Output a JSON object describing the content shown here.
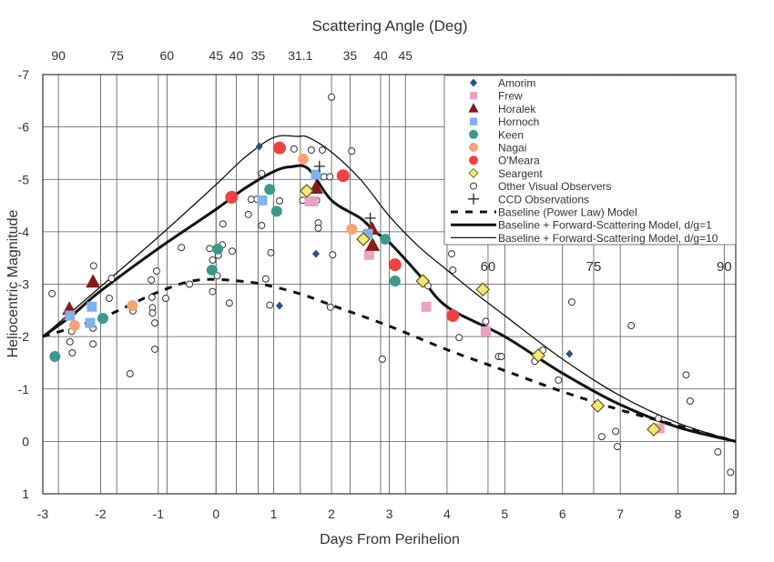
{
  "chart_data": {
    "type": "scatter",
    "title": "Scattering Angle (Deg)",
    "xlabel": "Days From Perihelion",
    "ylabel": "Heliocentric Magnitude",
    "xlim": [
      -3,
      9
    ],
    "ylim": [
      1,
      -7
    ],
    "y_inverted": true,
    "grid": true,
    "legend_placement": "top-right",
    "x_ticks": [
      "-3",
      "-2",
      "-1",
      "0",
      "1",
      "2",
      "3",
      "4",
      "5",
      "6",
      "7",
      "8",
      "9"
    ],
    "y_ticks": [
      "-7",
      "-6",
      "-5",
      "-4",
      "-3",
      "-2",
      "-1",
      "0",
      "1"
    ],
    "angle_ticks_top": [
      {
        "label": "90",
        "day": -2.73
      },
      {
        "label": "75",
        "day": -1.72
      },
      {
        "label": "60",
        "day": -0.85
      },
      {
        "label": "45",
        "day": 0.0
      },
      {
        "label": "40",
        "day": 0.35
      },
      {
        "label": "35",
        "day": 0.73
      },
      {
        "label": "31.1",
        "day": 1.46
      },
      {
        "label": "35",
        "day": 2.32
      },
      {
        "label": "40",
        "day": 2.85
      },
      {
        "label": "45",
        "day": 3.28
      }
    ],
    "angle_ticks_inner": [
      {
        "label": "60",
        "day": 4.71
      },
      {
        "label": "75",
        "day": 6.54
      },
      {
        "label": "90",
        "day": 8.8
      }
    ],
    "series": [
      {
        "name": "Amorim",
        "marker": "diamond",
        "color": "#2e4f86",
        "points": [
          [
            0.75,
            -5.63
          ],
          [
            1.1,
            -2.59
          ],
          [
            1.73,
            -3.58
          ],
          [
            6.12,
            -1.67
          ]
        ]
      },
      {
        "name": "Frew",
        "marker": "square",
        "color": "#e8a2c2",
        "points": [
          [
            1.62,
            -4.58
          ],
          [
            1.68,
            -4.58
          ],
          [
            2.65,
            -3.56
          ],
          [
            3.64,
            -2.57
          ],
          [
            4.67,
            -2.1
          ],
          [
            7.68,
            -0.25
          ]
        ]
      },
      {
        "name": "Horalek",
        "marker": "triangle",
        "color": "#8b1a1a",
        "points": [
          [
            -2.54,
            -2.52
          ],
          [
            -2.13,
            -3.04
          ],
          [
            1.73,
            -4.83
          ],
          [
            2.7,
            -4.05
          ],
          [
            2.71,
            -3.74
          ]
        ]
      },
      {
        "name": "Hornoch",
        "marker": "square",
        "color": "#80b2e8",
        "points": [
          [
            -2.53,
            -2.4
          ],
          [
            -2.15,
            -2.57
          ],
          [
            -2.18,
            -2.26
          ],
          [
            0.8,
            -4.6
          ],
          [
            1.73,
            -5.09
          ],
          [
            2.63,
            -3.96
          ]
        ]
      },
      {
        "name": "Keen",
        "marker": "circle",
        "color": "#3a9a8a",
        "points": [
          [
            -2.79,
            -1.62
          ],
          [
            -1.96,
            -2.35
          ],
          [
            -0.07,
            -3.27
          ],
          [
            0.03,
            -3.67
          ],
          [
            0.93,
            -4.81
          ],
          [
            1.05,
            -4.39
          ],
          [
            2.93,
            -3.86
          ],
          [
            3.1,
            -3.06
          ]
        ]
      },
      {
        "name": "Nagai",
        "marker": "circle",
        "color": "#f5a276",
        "points": [
          [
            -2.45,
            -2.21
          ],
          [
            -1.45,
            -2.59
          ],
          [
            1.51,
            -5.39
          ],
          [
            2.35,
            -4.05
          ]
        ]
      },
      {
        "name": "O'Meara",
        "marker": "circle",
        "color": "#ee4242",
        "points": [
          [
            0.27,
            -4.66
          ],
          [
            1.1,
            -5.6
          ],
          [
            2.2,
            -5.07
          ],
          [
            3.1,
            -3.37
          ],
          [
            4.1,
            -2.4
          ]
        ]
      },
      {
        "name": "Seargent",
        "marker": "diamond-outline",
        "color": "#f0e87a",
        "points": [
          [
            1.57,
            -4.78
          ],
          [
            2.55,
            -3.86
          ],
          [
            3.58,
            -3.06
          ],
          [
            4.62,
            -2.9
          ],
          [
            5.58,
            -1.64
          ],
          [
            6.61,
            -0.68
          ],
          [
            7.58,
            -0.23
          ]
        ]
      },
      {
        "name": "Other Visual Observers",
        "marker": "open-circle",
        "color": "#333333",
        "points": [
          [
            -2.84,
            -2.82
          ],
          [
            -2.12,
            -3.35
          ],
          [
            -1.81,
            -3.11
          ],
          [
            -1.85,
            -2.73
          ],
          [
            -1.44,
            -2.49
          ],
          [
            -1.12,
            -3.08
          ],
          [
            -1.11,
            -2.75
          ],
          [
            -1.1,
            -2.55
          ],
          [
            -1.1,
            -2.45
          ],
          [
            -1.06,
            -2.26
          ],
          [
            -1.03,
            -3.25
          ],
          [
            -0.87,
            -2.73
          ],
          [
            -0.6,
            -3.7
          ],
          [
            -0.46,
            -3.0
          ],
          [
            -0.11,
            -3.68
          ],
          [
            -0.06,
            -3.46
          ],
          [
            -0.06,
            -2.86
          ],
          [
            0.04,
            -3.55
          ],
          [
            0.02,
            -3.16
          ],
          [
            0.11,
            -3.75
          ],
          [
            0.12,
            -4.15
          ],
          [
            0.28,
            -3.63
          ],
          [
            0.23,
            -2.64
          ],
          [
            0.56,
            -4.33
          ],
          [
            0.61,
            -4.62
          ],
          [
            0.71,
            -4.62
          ],
          [
            0.79,
            -5.11
          ],
          [
            0.79,
            -4.12
          ],
          [
            0.86,
            -3.1
          ],
          [
            0.93,
            -2.6
          ],
          [
            0.95,
            -3.6
          ],
          [
            1.1,
            -4.59
          ],
          [
            1.35,
            -5.58
          ],
          [
            1.5,
            -4.6
          ],
          [
            1.74,
            -4.6
          ],
          [
            1.65,
            -5.56
          ],
          [
            1.84,
            -5.56
          ],
          [
            1.87,
            -5.05
          ],
          [
            1.97,
            -5.05
          ],
          [
            1.77,
            -4.17
          ],
          [
            1.77,
            -4.07
          ],
          [
            2.02,
            -3.56
          ],
          [
            2.0,
            -6.57
          ],
          [
            1.98,
            -2.56
          ],
          [
            2.35,
            -5.54
          ],
          [
            3.67,
            -2.97
          ],
          [
            4.08,
            -3.58
          ],
          [
            4.1,
            -3.27
          ],
          [
            4.67,
            -2.29
          ],
          [
            4.21,
            -1.98
          ],
          [
            2.88,
            -1.57
          ],
          [
            4.89,
            -1.62
          ],
          [
            4.94,
            -1.62
          ],
          [
            5.52,
            -1.53
          ],
          [
            5.66,
            -1.74
          ],
          [
            6.16,
            -2.66
          ],
          [
            5.93,
            -1.17
          ],
          [
            7.19,
            -2.21
          ],
          [
            6.68,
            -0.09
          ],
          [
            6.92,
            -0.19
          ],
          [
            6.95,
            0.1
          ],
          [
            7.66,
            -0.44
          ],
          [
            8.14,
            -1.27
          ],
          [
            8.21,
            -0.77
          ],
          [
            8.69,
            0.2
          ],
          [
            8.91,
            0.59
          ],
          [
            -2.53,
            -1.9
          ],
          [
            -2.49,
            -1.69
          ],
          [
            -2.5,
            -2.1
          ],
          [
            -2.13,
            -1.86
          ],
          [
            -2.13,
            -2.16
          ],
          [
            -1.49,
            -1.29
          ],
          [
            -1.06,
            -1.76
          ]
        ]
      },
      {
        "name": "CCD Observations",
        "marker": "plus",
        "color": "#222222",
        "points": [
          [
            1.79,
            -5.25
          ],
          [
            2.67,
            -4.26
          ]
        ]
      }
    ],
    "lines": [
      {
        "name": "Baseline (Power Law) Model",
        "style": "dashed",
        "points": [
          [
            -3,
            -2.0
          ],
          [
            -2,
            -2.35
          ],
          [
            -1,
            -2.85
          ],
          [
            -0.3,
            -3.08
          ],
          [
            0.5,
            -3.05
          ],
          [
            1,
            -2.95
          ],
          [
            1.5,
            -2.8
          ],
          [
            2,
            -2.6
          ],
          [
            3,
            -2.2
          ],
          [
            4,
            -1.75
          ],
          [
            5,
            -1.35
          ],
          [
            6,
            -0.95
          ],
          [
            7,
            -0.6
          ],
          [
            8,
            -0.3
          ],
          [
            9,
            0
          ]
        ]
      },
      {
        "name": "Baseline + Forward-Scattering Model, d/g=1",
        "style": "thick",
        "points": [
          [
            -3,
            -2.0
          ],
          [
            -2.5,
            -2.4
          ],
          [
            -2,
            -2.87
          ],
          [
            -1,
            -3.68
          ],
          [
            0,
            -4.43
          ],
          [
            0.5,
            -4.83
          ],
          [
            1,
            -5.15
          ],
          [
            1.3,
            -5.24
          ],
          [
            1.6,
            -5.2
          ],
          [
            2,
            -4.6
          ],
          [
            2.5,
            -4.26
          ],
          [
            2.75,
            -4.0
          ],
          [
            3,
            -3.8
          ],
          [
            3.5,
            -3.2
          ],
          [
            4,
            -2.57
          ],
          [
            5,
            -2.0
          ],
          [
            6,
            -1.3
          ],
          [
            7,
            -0.7
          ],
          [
            8,
            -0.27
          ],
          [
            9,
            0
          ]
        ]
      },
      {
        "name": "Baseline + Forward-Scattering Model, d/g=10",
        "style": "thin",
        "points": [
          [
            -3,
            -2.0
          ],
          [
            -2,
            -2.95
          ],
          [
            -1,
            -3.9
          ],
          [
            0,
            -4.9
          ],
          [
            0.5,
            -5.42
          ],
          [
            1,
            -5.8
          ],
          [
            1.4,
            -5.82
          ],
          [
            1.6,
            -5.8
          ],
          [
            2,
            -5.52
          ],
          [
            2.5,
            -5.0
          ],
          [
            3,
            -4.3
          ],
          [
            3.5,
            -3.73
          ],
          [
            4,
            -3.27
          ],
          [
            4.5,
            -2.82
          ],
          [
            5,
            -2.4
          ],
          [
            6,
            -1.57
          ],
          [
            7,
            -0.87
          ],
          [
            8,
            -0.35
          ],
          [
            9,
            0
          ]
        ]
      }
    ]
  }
}
